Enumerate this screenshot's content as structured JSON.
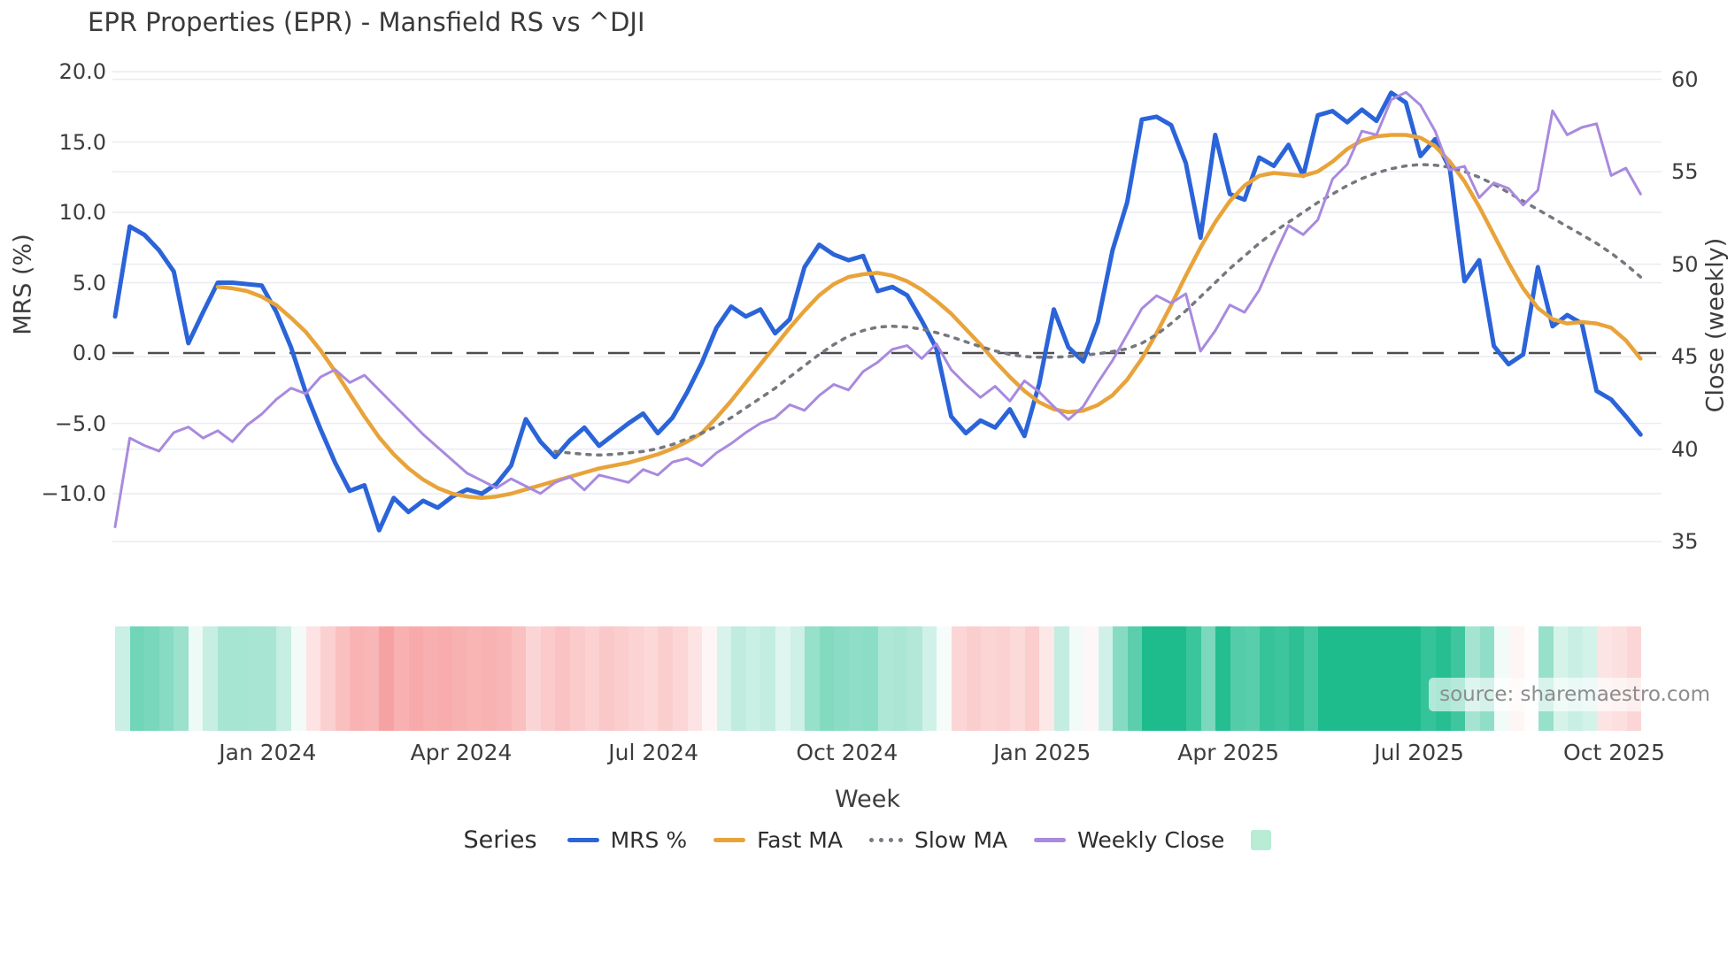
{
  "title": "EPR Properties (EPR) - Mansfield RS vs ^DJI",
  "source_note": "source: sharemaestro.com",
  "colors": {
    "mrs_blue": "#2b64d9",
    "fast_ma_orange": "#e8a33a",
    "slow_ma_gray": "#76787f",
    "weekly_close_purple": "#a98ade",
    "heatmap_green": "#1ebc8d",
    "heatmap_red": "#f7a0a0",
    "legend_square_mint": "#b8ecd4",
    "gridline": "#eaecf2",
    "zero_dash": "#4d4d4d",
    "text_dark": "#3b3b3b",
    "text_source": "#8d8d8d"
  },
  "legend": {
    "title": "Series",
    "items": [
      {
        "label": "MRS %",
        "swatch": "line",
        "color": "#2b64d9"
      },
      {
        "label": "Fast MA",
        "swatch": "line",
        "color": "#e8a33a"
      },
      {
        "label": "Slow MA",
        "swatch": "dots",
        "color": "#76787f"
      },
      {
        "label": "Weekly Close",
        "swatch": "line",
        "color": "#a98ade"
      },
      {
        "label": "",
        "swatch": "square",
        "color": "#b8ecd4"
      }
    ]
  },
  "chart_data": {
    "type": "line",
    "title": "EPR Properties (EPR) - Mansfield RS vs ^DJI",
    "xlabel": "Week",
    "ylabel_left": "MRS (%)",
    "ylabel_right": "Close (weekly)",
    "grid": true,
    "legend_position": "bottom",
    "y_left_ticks": [
      {
        "v": 20,
        "label": "20.0"
      },
      {
        "v": 15,
        "label": "15.0"
      },
      {
        "v": 10,
        "label": "10.0"
      },
      {
        "v": 5,
        "label": "5.0"
      },
      {
        "v": 0,
        "label": "0.0"
      },
      {
        "v": -5,
        "label": "−5.0"
      },
      {
        "v": -10,
        "label": "−10.0"
      }
    ],
    "y_right_ticks": [
      {
        "v": 60,
        "label": "60"
      },
      {
        "v": 55,
        "label": "55"
      },
      {
        "v": 50,
        "label": "50"
      },
      {
        "v": 45,
        "label": "45"
      },
      {
        "v": 40,
        "label": "40"
      },
      {
        "v": 35,
        "label": "35"
      }
    ],
    "y_left_range": [
      -14.5,
      21.5
    ],
    "y_right_range": [
      33.5,
      61.5
    ],
    "zero_line_left": 0,
    "x_ticks": [
      {
        "week": 10.4,
        "label": "Jan 2024"
      },
      {
        "week": 23.6,
        "label": "Apr 2024"
      },
      {
        "week": 36.7,
        "label": "Jul 2024"
      },
      {
        "week": 49.9,
        "label": "Oct 2024"
      },
      {
        "week": 63.2,
        "label": "Jan 2025"
      },
      {
        "week": 75.9,
        "label": "Apr 2025"
      },
      {
        "week": 88.9,
        "label": "Jul 2025"
      },
      {
        "week": 102.2,
        "label": "Oct 2025"
      }
    ],
    "weeks_count": 105,
    "series": [
      {
        "name": "MRS %",
        "axis": "left",
        "style": "solid",
        "width": 5,
        "color": "#2b64d9",
        "values": [
          2.6,
          9.0,
          8.4,
          7.3,
          5.8,
          0.7,
          2.9,
          5.0,
          5.0,
          4.9,
          4.8,
          2.9,
          0.4,
          -2.8,
          -5.4,
          -7.8,
          -9.8,
          -9.4,
          -12.6,
          -10.3,
          -11.3,
          -10.5,
          -11.0,
          -10.2,
          -9.7,
          -10.0,
          -9.3,
          -8.0,
          -4.7,
          -6.3,
          -7.4,
          -6.2,
          -5.3,
          -6.6,
          -5.8,
          -5.0,
          -4.3,
          -5.7,
          -4.6,
          -2.8,
          -0.7,
          1.8,
          3.3,
          2.6,
          3.1,
          1.4,
          2.4,
          6.1,
          7.7,
          7.0,
          6.6,
          6.9,
          4.4,
          4.7,
          4.1,
          2.3,
          0.3,
          -4.5,
          -5.7,
          -4.8,
          -5.3,
          -4.0,
          -5.9,
          -2.2,
          3.1,
          0.4,
          -0.6,
          2.2,
          7.3,
          10.7,
          16.6,
          16.8,
          16.2,
          13.5,
          8.2,
          15.5,
          11.3,
          10.9,
          13.9,
          13.3,
          14.8,
          12.6,
          16.9,
          17.2,
          16.4,
          17.3,
          16.5,
          18.5,
          17.8,
          14.0,
          15.2,
          13.1,
          5.1,
          6.6,
          0.5,
          -0.8,
          -0.1,
          6.1,
          1.9,
          2.7,
          2.1,
          -2.7,
          -3.3,
          -4.5,
          -5.8
        ]
      },
      {
        "name": "Fast MA",
        "axis": "left",
        "style": "solid",
        "width": 4.5,
        "color": "#e8a33a",
        "values": [
          null,
          null,
          null,
          null,
          null,
          null,
          null,
          4.7,
          4.6,
          4.4,
          4.0,
          3.4,
          2.5,
          1.5,
          0.2,
          -1.3,
          -2.9,
          -4.5,
          -6.0,
          -7.2,
          -8.2,
          -9.0,
          -9.6,
          -10.0,
          -10.2,
          -10.3,
          -10.2,
          -10.0,
          -9.7,
          -9.4,
          -9.1,
          -8.8,
          -8.5,
          -8.2,
          -8.0,
          -7.8,
          -7.5,
          -7.2,
          -6.8,
          -6.3,
          -5.7,
          -4.6,
          -3.4,
          -2.1,
          -0.8,
          0.5,
          1.8,
          3.0,
          4.1,
          4.9,
          5.4,
          5.6,
          5.7,
          5.5,
          5.1,
          4.5,
          3.7,
          2.8,
          1.7,
          0.6,
          -0.6,
          -1.7,
          -2.7,
          -3.5,
          -4.0,
          -4.2,
          -4.1,
          -3.7,
          -3.0,
          -1.9,
          -0.4,
          1.4,
          3.4,
          5.5,
          7.5,
          9.3,
          10.8,
          11.9,
          12.6,
          12.8,
          12.7,
          12.6,
          12.9,
          13.6,
          14.5,
          15.1,
          15.4,
          15.5,
          15.5,
          15.3,
          14.7,
          13.6,
          12.2,
          10.4,
          8.4,
          6.4,
          4.6,
          3.2,
          2.4,
          2.1,
          2.2,
          2.1,
          1.8,
          0.9,
          -0.4
        ]
      },
      {
        "name": "Slow MA",
        "axis": "left",
        "style": "dotted",
        "width": 3.5,
        "color": "#76787f",
        "values": [
          null,
          null,
          null,
          null,
          null,
          null,
          null,
          null,
          null,
          null,
          null,
          null,
          null,
          null,
          null,
          null,
          null,
          null,
          null,
          null,
          null,
          null,
          null,
          null,
          null,
          null,
          null,
          null,
          null,
          null,
          -7.0,
          -7.1,
          -7.2,
          -7.25,
          -7.2,
          -7.1,
          -7.0,
          -6.8,
          -6.5,
          -6.1,
          -5.7,
          -5.2,
          -4.6,
          -3.9,
          -3.2,
          -2.5,
          -1.7,
          -0.9,
          -0.1,
          0.6,
          1.2,
          1.6,
          1.85,
          1.9,
          1.85,
          1.7,
          1.45,
          1.15,
          0.8,
          0.45,
          0.15,
          -0.1,
          -0.25,
          -0.3,
          -0.3,
          -0.25,
          -0.15,
          -0.05,
          0.1,
          0.3,
          0.7,
          1.3,
          2.1,
          3.0,
          4.0,
          5.0,
          6.0,
          6.9,
          7.8,
          8.6,
          9.3,
          10.0,
          10.7,
          11.3,
          11.9,
          12.4,
          12.8,
          13.1,
          13.3,
          13.4,
          13.35,
          13.2,
          12.9,
          12.5,
          12.0,
          11.4,
          10.8,
          10.2,
          9.6,
          9.0,
          8.4,
          7.8,
          7.1,
          6.3,
          5.4
        ]
      },
      {
        "name": "Weekly Close",
        "axis": "right",
        "style": "solid",
        "width": 3,
        "color": "#a98ade",
        "values": [
          35.8,
          40.6,
          40.2,
          39.9,
          40.9,
          41.2,
          40.6,
          41.0,
          40.4,
          41.3,
          41.9,
          42.7,
          43.3,
          43.0,
          43.9,
          44.3,
          43.6,
          44.0,
          43.2,
          42.4,
          41.6,
          40.8,
          40.1,
          39.4,
          38.7,
          38.3,
          37.9,
          38.4,
          38.0,
          37.6,
          38.2,
          38.5,
          37.8,
          38.6,
          38.4,
          38.2,
          38.9,
          38.6,
          39.3,
          39.5,
          39.1,
          39.8,
          40.3,
          40.9,
          41.4,
          41.7,
          42.4,
          42.1,
          42.9,
          43.5,
          43.2,
          44.2,
          44.7,
          45.4,
          45.6,
          44.9,
          45.7,
          44.3,
          43.5,
          42.8,
          43.4,
          42.6,
          43.7,
          43.1,
          42.3,
          41.6,
          42.3,
          43.6,
          44.8,
          46.2,
          47.6,
          48.3,
          47.9,
          48.4,
          45.3,
          46.4,
          47.8,
          47.4,
          48.6,
          50.4,
          52.1,
          51.6,
          52.4,
          54.6,
          55.4,
          57.2,
          57.0,
          58.9,
          59.3,
          58.6,
          57.2,
          55.1,
          55.3,
          53.6,
          54.4,
          54.1,
          53.2,
          54.0,
          58.3,
          57.0,
          57.4,
          57.6,
          54.8,
          55.2,
          53.8
        ]
      }
    ],
    "heatmap": {
      "source_series": "MRS %",
      "positive_color": "#1ebc8d",
      "negative_color": "#f7a0a0",
      "positive_scale_max": 16,
      "negative_scale_max": 13
    }
  }
}
